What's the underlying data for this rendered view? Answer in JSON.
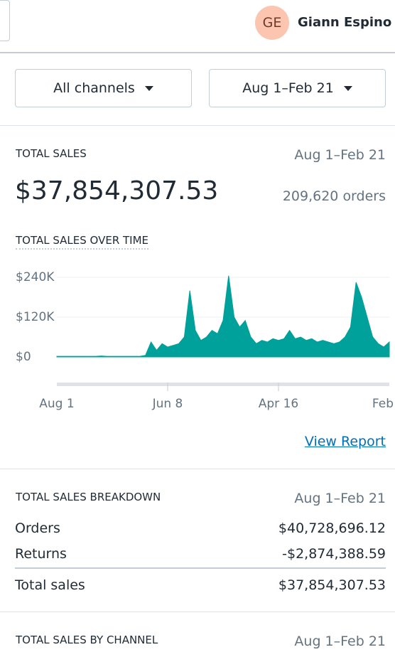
{
  "header": {
    "avatar_initials": "GE",
    "user_name": "Giann Espino"
  },
  "filters": {
    "channel": "All channels",
    "date_range": "Aug 1–Feb 21"
  },
  "total_sales": {
    "title": "TOTAL SALES",
    "date_range": "Aug 1–Feb 21",
    "amount": "$37,854,307.53",
    "orders": "209,620 orders",
    "link": "View Report",
    "chart_data": {
      "type": "area",
      "title": "TOTAL SALES OVER TIME",
      "categories": [
        "Aug 1",
        null,
        null,
        null,
        null,
        null,
        null,
        null,
        null,
        null,
        null,
        null,
        null,
        null,
        null,
        null,
        null,
        null,
        null,
        null,
        "Jun 8",
        null,
        null,
        null,
        null,
        null,
        null,
        null,
        null,
        null,
        null,
        null,
        null,
        null,
        null,
        null,
        null,
        null,
        null,
        null,
        "Apr 16",
        null,
        null,
        null,
        null,
        null,
        null,
        null,
        null,
        null,
        null,
        null,
        null,
        null,
        null,
        null,
        null,
        null,
        null,
        null,
        "Feb"
      ],
      "values": [
        2000,
        2000,
        2000,
        2000,
        2000,
        2000,
        2000,
        2000,
        3000,
        2000,
        2000,
        2000,
        2000,
        2000,
        2000,
        2000,
        5000,
        45000,
        20000,
        40000,
        30000,
        35000,
        40000,
        60000,
        200000,
        80000,
        50000,
        60000,
        80000,
        70000,
        110000,
        245000,
        120000,
        90000,
        110000,
        60000,
        40000,
        50000,
        45000,
        55000,
        50000,
        55000,
        80000,
        55000,
        60000,
        50000,
        55000,
        45000,
        50000,
        45000,
        40000,
        45000,
        60000,
        90000,
        225000,
        180000,
        120000,
        60000,
        40000,
        30000,
        45000
      ],
      "color": "#00a19a",
      "ylim": [
        -15000,
        255000
      ],
      "yticks": [
        {
          "value": 0,
          "label": "$0"
        },
        {
          "value": 120000,
          "label": "$120K"
        },
        {
          "value": 240000,
          "label": "$240K"
        }
      ],
      "grid": true
    }
  },
  "breakdown": {
    "title": "TOTAL SALES BREAKDOWN",
    "date_range": "Aug 1–Feb 21",
    "rows": [
      {
        "label": "Orders",
        "value": "$40,728,696.12"
      },
      {
        "label": "Returns",
        "value": "-$2,874,388.59"
      },
      {
        "label": "Total sales",
        "value": "$37,854,307.53"
      }
    ]
  },
  "by_channel": {
    "title": "TOTAL SALES BY CHANNEL",
    "date_range": "Aug 1–Feb 21"
  }
}
